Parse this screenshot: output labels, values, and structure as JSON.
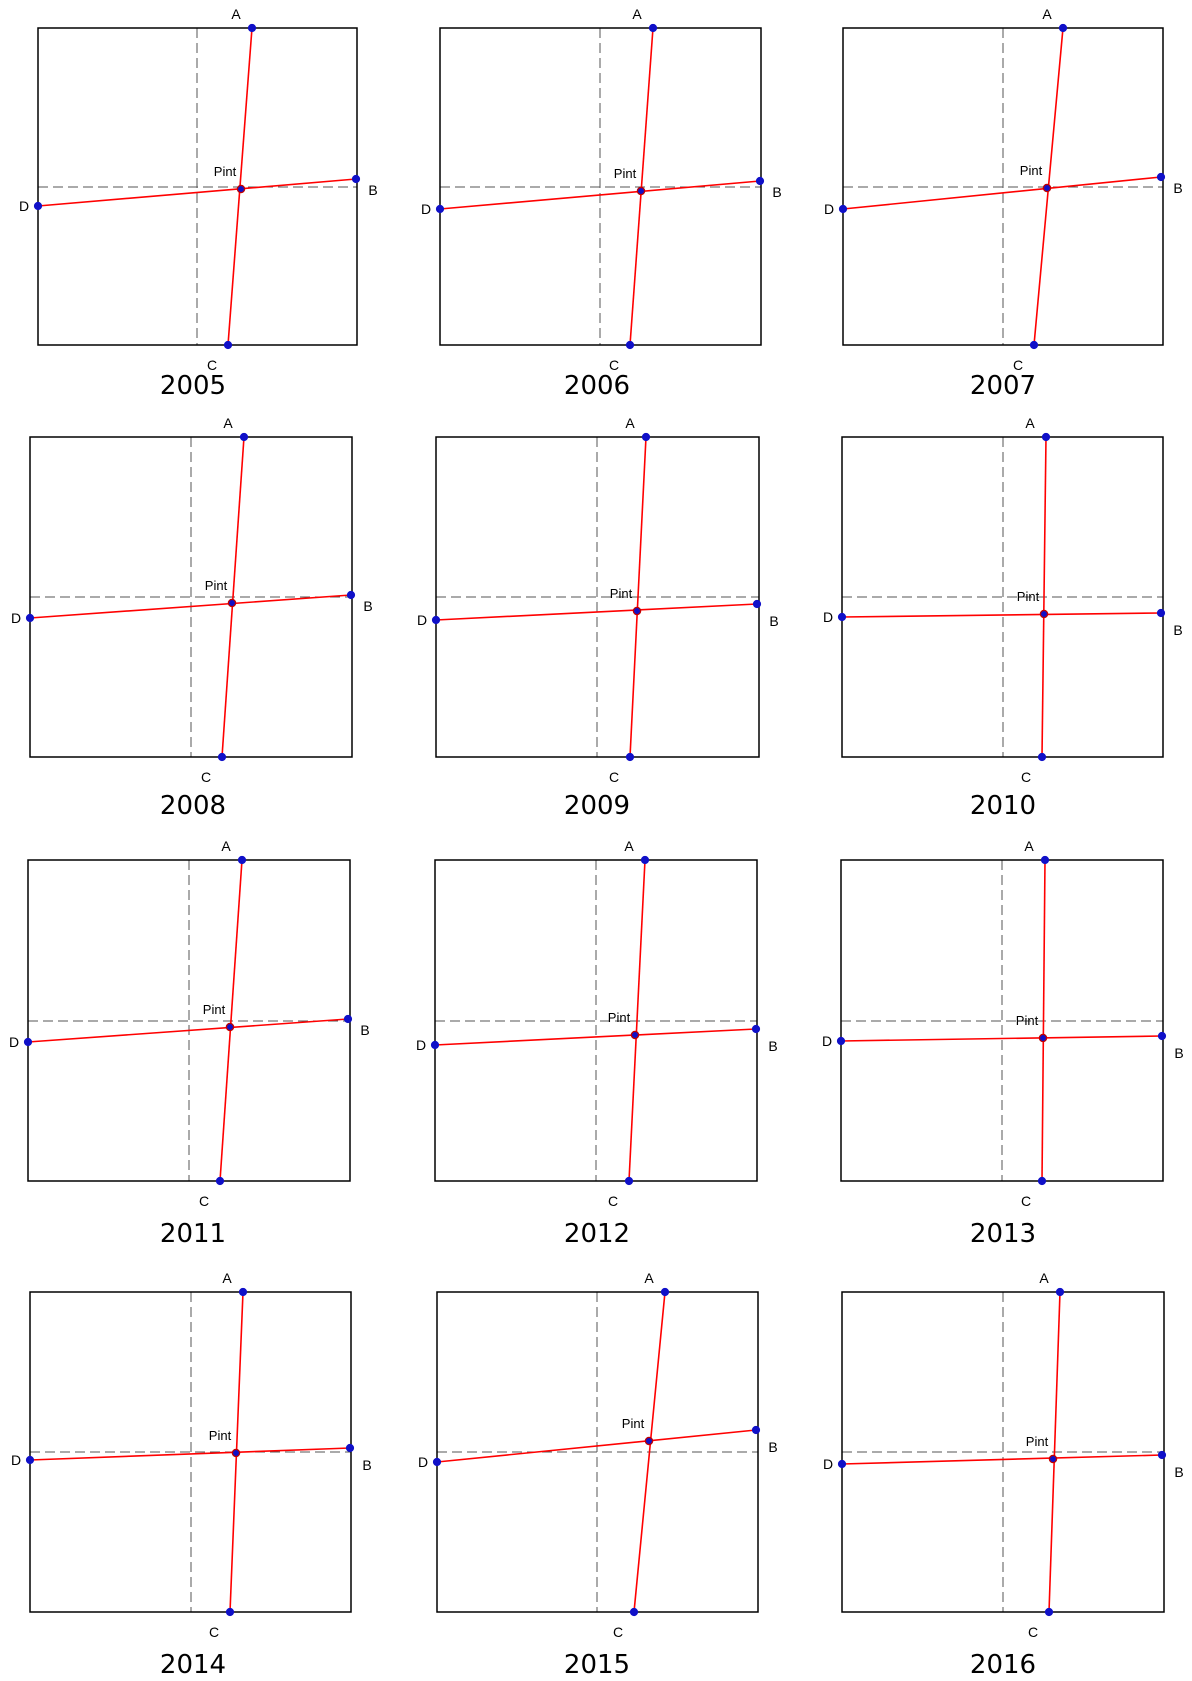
{
  "labels": {
    "a": "A",
    "b": "B",
    "c": "C",
    "d": "D",
    "intersection": "Pint"
  },
  "colors": {
    "lines": "#ff0000",
    "points": "#1010c8",
    "point_outline": "#c00000",
    "frame": "#000000",
    "guides": "#555555"
  },
  "panels": [
    {
      "year": "2005"
    },
    {
      "year": "2006"
    },
    {
      "year": "2007"
    },
    {
      "year": "2008"
    },
    {
      "year": "2009"
    },
    {
      "year": "2010"
    },
    {
      "year": "2011"
    },
    {
      "year": "2012"
    },
    {
      "year": "2013"
    },
    {
      "year": "2014"
    },
    {
      "year": "2015"
    },
    {
      "year": "2016"
    }
  ]
}
